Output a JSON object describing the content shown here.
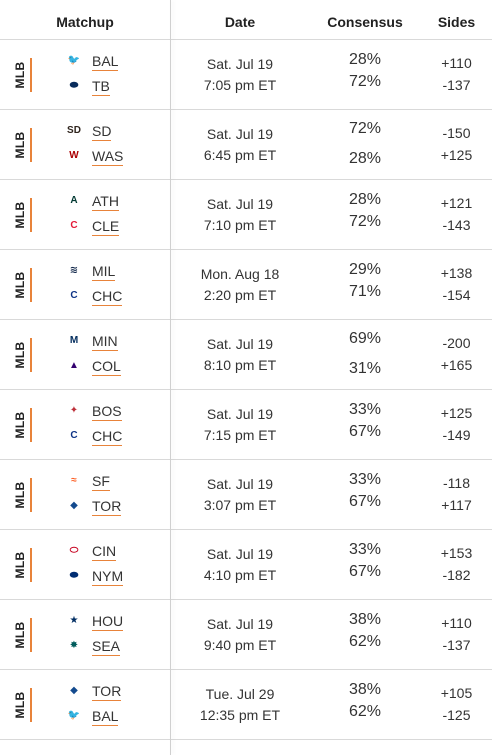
{
  "header": {
    "matchup": "Matchup",
    "date": "Date",
    "consensus": "Consensus",
    "sides": "Sides"
  },
  "rows": [
    {
      "league": "MLB",
      "team1": {
        "abbr": "BAL",
        "logo": "orioles-logo-icon",
        "color": "#df4601",
        "glyph": "🐦"
      },
      "team2": {
        "abbr": "TB",
        "logo": "rays-logo-icon",
        "color": "#092c5c",
        "glyph": "⬬"
      },
      "date": "Sat. Jul 19",
      "time": "7:05 pm ET",
      "cons1": "28%",
      "cons2": "72%",
      "big": 2,
      "side1": "+110",
      "side2": "-137"
    },
    {
      "league": "MLB",
      "team1": {
        "abbr": "SD",
        "logo": "padres-logo-icon",
        "color": "#2f241d",
        "glyph": "SD"
      },
      "team2": {
        "abbr": "WAS",
        "logo": "nationals-logo-icon",
        "color": "#ab0003",
        "glyph": "W"
      },
      "date": "Sat. Jul 19",
      "time": "6:45 pm ET",
      "cons1": "72%",
      "cons2": "28%",
      "big": 1,
      "side1": "-150",
      "side2": "+125"
    },
    {
      "league": "MLB",
      "team1": {
        "abbr": "ATH",
        "logo": "athletics-logo-icon",
        "color": "#003831",
        "glyph": "A"
      },
      "team2": {
        "abbr": "CLE",
        "logo": "guardians-logo-icon",
        "color": "#e31937",
        "glyph": "C"
      },
      "date": "Sat. Jul 19",
      "time": "7:10 pm ET",
      "cons1": "28%",
      "cons2": "72%",
      "big": 2,
      "side1": "+121",
      "side2": "-143"
    },
    {
      "league": "MLB",
      "team1": {
        "abbr": "MIL",
        "logo": "brewers-logo-icon",
        "color": "#12284b",
        "glyph": "≋"
      },
      "team2": {
        "abbr": "CHC",
        "logo": "cubs-logo-icon",
        "color": "#0e3386",
        "glyph": "C"
      },
      "date": "Mon. Aug 18",
      "time": "2:20 pm ET",
      "cons1": "29%",
      "cons2": "71%",
      "big": 2,
      "side1": "+138",
      "side2": "-154"
    },
    {
      "league": "MLB",
      "team1": {
        "abbr": "MIN",
        "logo": "twins-logo-icon",
        "color": "#002b5c",
        "glyph": "M"
      },
      "team2": {
        "abbr": "COL",
        "logo": "rockies-logo-icon",
        "color": "#33006f",
        "glyph": "▲"
      },
      "date": "Sat. Jul 19",
      "time": "8:10 pm ET",
      "cons1": "69%",
      "cons2": "31%",
      "big": 1,
      "side1": "-200",
      "side2": "+165"
    },
    {
      "league": "MLB",
      "team1": {
        "abbr": "BOS",
        "logo": "red-sox-logo-icon",
        "color": "#bd3039",
        "glyph": "✦"
      },
      "team2": {
        "abbr": "CHC",
        "logo": "cubs-logo-icon",
        "color": "#0e3386",
        "glyph": "C"
      },
      "date": "Sat. Jul 19",
      "time": "7:15 pm ET",
      "cons1": "33%",
      "cons2": "67%",
      "big": 2,
      "side1": "+125",
      "side2": "-149"
    },
    {
      "league": "MLB",
      "team1": {
        "abbr": "SF",
        "logo": "giants-logo-icon",
        "color": "#fd5a1e",
        "glyph": "≈"
      },
      "team2": {
        "abbr": "TOR",
        "logo": "blue-jays-logo-icon",
        "color": "#134a8e",
        "glyph": "◆"
      },
      "date": "Sat. Jul 19",
      "time": "3:07 pm ET",
      "cons1": "33%",
      "cons2": "67%",
      "big": 2,
      "side1": "-118",
      "side2": "+117"
    },
    {
      "league": "MLB",
      "team1": {
        "abbr": "CIN",
        "logo": "reds-logo-icon",
        "color": "#c6011f",
        "glyph": "⬭"
      },
      "team2": {
        "abbr": "NYM",
        "logo": "mets-logo-icon",
        "color": "#002d72",
        "glyph": "⬬"
      },
      "date": "Sat. Jul 19",
      "time": "4:10 pm ET",
      "cons1": "33%",
      "cons2": "67%",
      "big": 2,
      "side1": "+153",
      "side2": "-182"
    },
    {
      "league": "MLB",
      "team1": {
        "abbr": "HOU",
        "logo": "astros-logo-icon",
        "color": "#002d62",
        "glyph": "★"
      },
      "team2": {
        "abbr": "SEA",
        "logo": "mariners-logo-icon",
        "color": "#005c5c",
        "glyph": "✸"
      },
      "date": "Sat. Jul 19",
      "time": "9:40 pm ET",
      "cons1": "38%",
      "cons2": "62%",
      "big": 2,
      "side1": "+110",
      "side2": "-137"
    },
    {
      "league": "MLB",
      "team1": {
        "abbr": "TOR",
        "logo": "blue-jays-logo-icon",
        "color": "#134a8e",
        "glyph": "◆"
      },
      "team2": {
        "abbr": "BAL",
        "logo": "orioles-logo-icon",
        "color": "#df4601",
        "glyph": "🐦"
      },
      "date": "Tue. Jul 29",
      "time": "12:35 pm ET",
      "cons1": "38%",
      "cons2": "62%",
      "big": 2,
      "side1": "+105",
      "side2": "-125"
    }
  ]
}
